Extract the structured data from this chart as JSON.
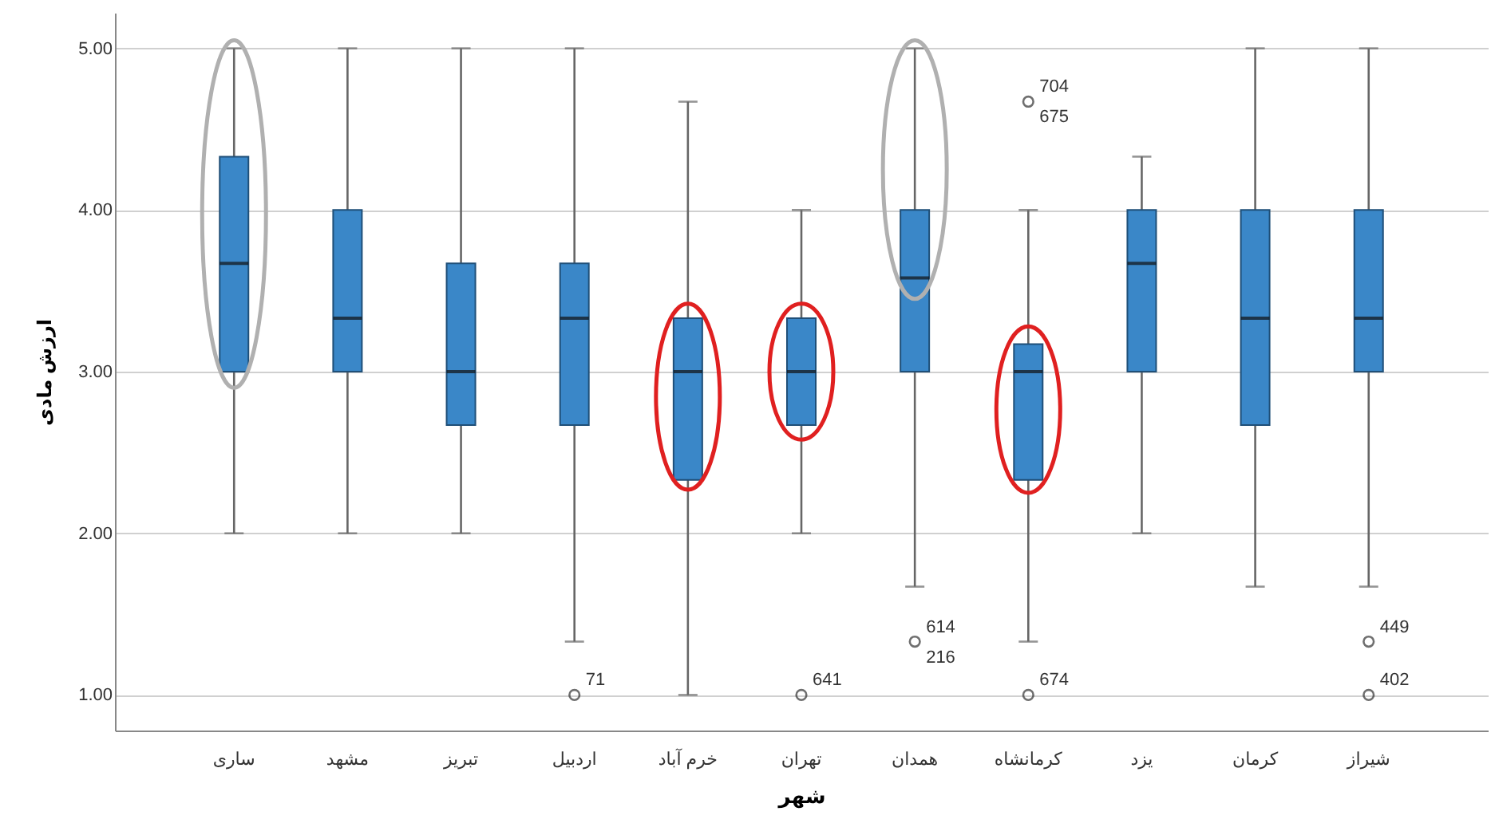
{
  "chart_data": {
    "type": "box",
    "xlabel": "شهر",
    "ylabel": "ارزش مادی",
    "categories": [
      "ساری",
      "مشهد",
      "تبریز",
      "اردبیل",
      "خرم آباد",
      "تهران",
      "همدان",
      "کرمانشاه",
      "یزد",
      "کرمان",
      "شیراز"
    ],
    "ylim": [
      0.78,
      5.22
    ],
    "yticks": [
      {
        "value": 1,
        "label": "1.00"
      },
      {
        "value": 2,
        "label": "2.00"
      },
      {
        "value": 3,
        "label": "3.00"
      },
      {
        "value": 4,
        "label": "4.00"
      },
      {
        "value": 5,
        "label": "5.00"
      }
    ],
    "grid": "y",
    "marker": "circle",
    "series": [
      {
        "color": "#3a87c8",
        "boxes": [
          {
            "low": 2,
            "q1": 3,
            "median": 3.67,
            "q3": 4.33,
            "high": 5
          },
          {
            "low": 2,
            "q1": 3,
            "median": 3.33,
            "q3": 4,
            "high": 5
          },
          {
            "low": 2,
            "q1": 2.67,
            "median": 3,
            "q3": 3.67,
            "high": 5
          },
          {
            "low": 1.33,
            "q1": 2.67,
            "median": 3.33,
            "q3": 3.67,
            "high": 5
          },
          {
            "low": 1,
            "q1": 2.33,
            "median": 3,
            "q3": 3.33,
            "high": 4.67
          },
          {
            "low": 2,
            "q1": 2.67,
            "median": 3,
            "q3": 3.33,
            "high": 4
          },
          {
            "low": 1.67,
            "q1": 3,
            "median": 3.58,
            "q3": 4,
            "high": 5
          },
          {
            "low": 1.33,
            "q1": 2.33,
            "median": 3,
            "q3": 3.17,
            "high": 4
          },
          {
            "low": 2,
            "q1": 3,
            "median": 3.67,
            "q3": 4,
            "high": 4.33
          },
          {
            "low": 1.67,
            "q1": 2.67,
            "median": 3.33,
            "q3": 4,
            "high": 5
          },
          {
            "low": 1.67,
            "q1": 3,
            "median": 3.33,
            "q3": 4,
            "high": 5
          }
        ]
      },
      {
        "type": "scatter",
        "color": "#333333",
        "x": [
          "اردبیل",
          "تهران",
          "همدان",
          "کرمانشاه",
          "کرمانشاه",
          "شیراز",
          "شیراز"
        ],
        "values": [
          1,
          1,
          1.33,
          4.67,
          1,
          1.33,
          1
        ]
      }
    ],
    "annotations": [
      {
        "text": "71",
        "x": "اردبیل",
        "y": 1
      },
      {
        "text": "641",
        "x": "تهران",
        "y": 1
      },
      {
        "text": "614",
        "x": "همدان",
        "y": 1.33
      },
      {
        "text": "216",
        "x": "همدان",
        "y": 1.33
      },
      {
        "text": "704",
        "x": "کرمانشاه",
        "y": 4.67
      },
      {
        "text": "675",
        "x": "کرمانشاه",
        "y": 4.67
      },
      {
        "text": "674",
        "x": "کرمانشاه",
        "y": 1
      },
      {
        "text": "449",
        "x": "شیراز",
        "y": 1.33
      },
      {
        "text": "402",
        "x": "شیراز",
        "y": 1
      }
    ]
  }
}
